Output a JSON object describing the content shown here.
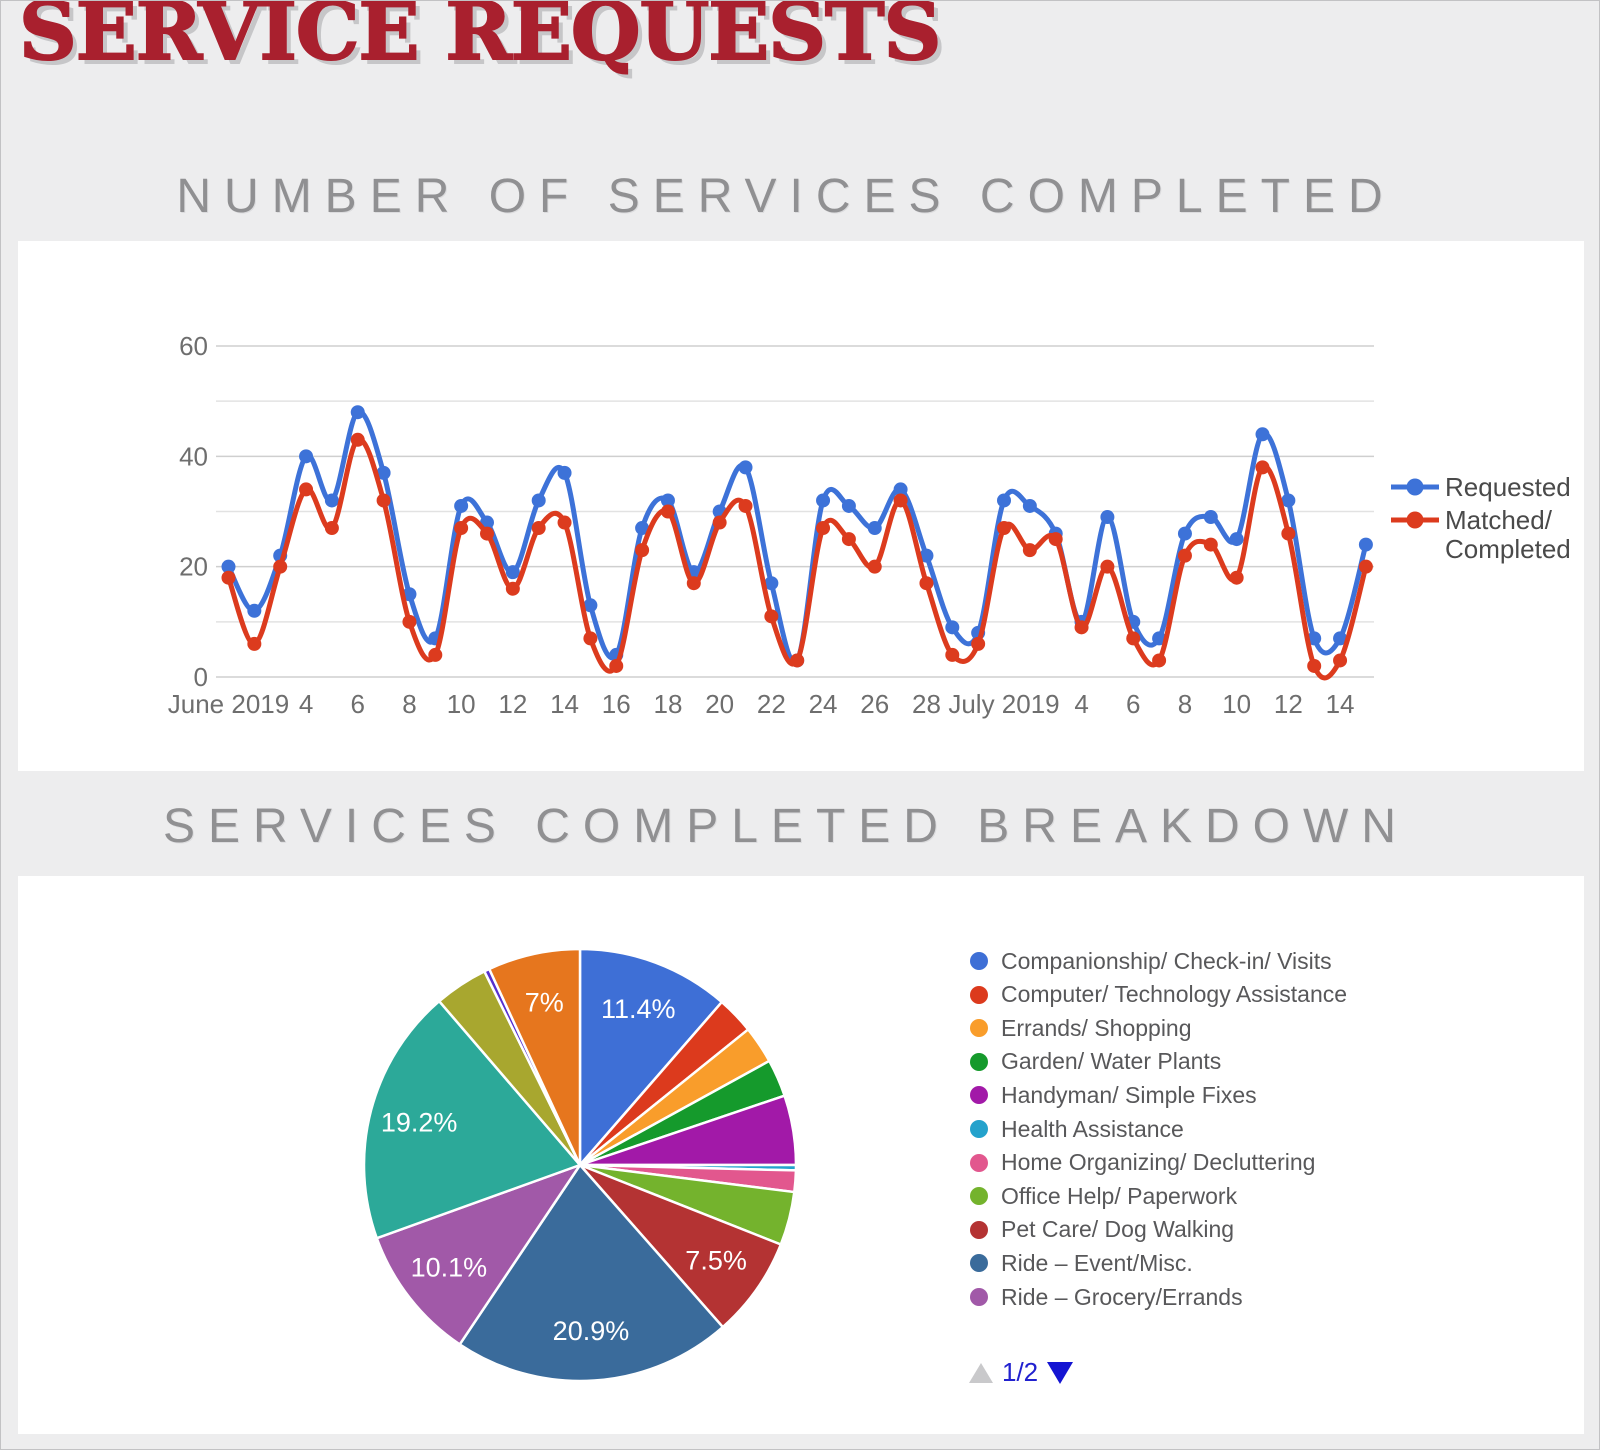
{
  "header": {
    "title": "SERVICE REQUESTS",
    "title_color": "#a9202e"
  },
  "chart_data": [
    {
      "type": "line",
      "title": "NUMBER OF SERVICES COMPLETED",
      "y_ticks": [
        0,
        20,
        40,
        60
      ],
      "ylim": [
        0,
        60
      ],
      "grid": "on",
      "legend_position": "right",
      "x_tick_labels": [
        {
          "label": "June 2019",
          "i": 0
        },
        {
          "label": "4",
          "i": 3
        },
        {
          "label": "6",
          "i": 5
        },
        {
          "label": "8",
          "i": 7
        },
        {
          "label": "10",
          "i": 9
        },
        {
          "label": "12",
          "i": 11
        },
        {
          "label": "14",
          "i": 13
        },
        {
          "label": "16",
          "i": 15
        },
        {
          "label": "18",
          "i": 17
        },
        {
          "label": "20",
          "i": 19
        },
        {
          "label": "22",
          "i": 21
        },
        {
          "label": "24",
          "i": 23
        },
        {
          "label": "26",
          "i": 25
        },
        {
          "label": "28",
          "i": 27
        },
        {
          "label": "July 2019",
          "i": 30
        },
        {
          "label": "4",
          "i": 33
        },
        {
          "label": "6",
          "i": 35
        },
        {
          "label": "8",
          "i": 37
        },
        {
          "label": "10",
          "i": 39
        },
        {
          "label": "12",
          "i": 41
        },
        {
          "label": "14",
          "i": 43
        }
      ],
      "series": [
        {
          "name": "Requested",
          "name_lines": [
            "Requested"
          ],
          "color": "#3d72d8",
          "values": [
            20,
            12,
            22,
            40,
            32,
            48,
            37,
            15,
            7,
            31,
            28,
            19,
            32,
            37,
            13,
            4,
            27,
            32,
            19,
            30,
            38,
            17,
            3,
            32,
            31,
            27,
            34,
            22,
            9,
            8,
            32,
            31,
            26,
            10,
            29,
            10,
            7,
            26,
            29,
            25,
            44,
            32,
            7,
            7,
            24
          ]
        },
        {
          "name": "Matched/ Completed",
          "name_lines": [
            "Matched/",
            "Completed"
          ],
          "color": "#dc3b1e",
          "values": [
            18,
            6,
            20,
            34,
            27,
            43,
            32,
            10,
            4,
            27,
            26,
            16,
            27,
            28,
            7,
            2,
            23,
            30,
            17,
            28,
            31,
            11,
            3,
            27,
            25,
            20,
            32,
            17,
            4,
            6,
            27,
            23,
            25,
            9,
            20,
            7,
            3,
            22,
            24,
            18,
            38,
            26,
            2,
            3,
            20
          ]
        }
      ]
    },
    {
      "type": "pie",
      "title": "SERVICES COMPLETED BREAKDOWN",
      "legend_page": "1/2",
      "slices": [
        {
          "label": "Companionship/ Check-in/ Visits",
          "value": 11.4,
          "display": "11.4%",
          "color": "#3e6fd6"
        },
        {
          "label": "Computer/ Technology Assistance",
          "value": 2.8,
          "display": "",
          "color": "#dc3a1d"
        },
        {
          "label": "Errands/ Shopping",
          "value": 2.8,
          "display": "",
          "color": "#f99d2b"
        },
        {
          "label": "Garden/ Water Plants",
          "value": 2.8,
          "display": "",
          "color": "#159a2c"
        },
        {
          "label": "Handyman/ Simple Fixes",
          "value": 5.2,
          "display": "",
          "color": "#a219a8"
        },
        {
          "label": "Health Assistance",
          "value": 0.4,
          "display": "",
          "color": "#24a2cc"
        },
        {
          "label": "Home Organizing/ Decluttering",
          "value": 1.6,
          "display": "",
          "color": "#e2578e"
        },
        {
          "label": "Office Help/ Paperwork",
          "value": 4.0,
          "display": "",
          "color": "#74b32d"
        },
        {
          "label": "Pet Care/ Dog Walking",
          "value": 7.5,
          "display": "7.5%",
          "color": "#b43333"
        },
        {
          "label": "Ride – Event/Misc.",
          "value": 20.9,
          "display": "20.9%",
          "color": "#3a6b9b"
        },
        {
          "label": "Ride – Grocery/Errands",
          "value": 10.1,
          "display": "10.1%",
          "color": "#a159a8"
        },
        {
          "label": "",
          "value": 19.2,
          "display": "19.2%",
          "color": "#2ca999"
        },
        {
          "label": "",
          "value": 4.0,
          "display": "",
          "color": "#a8a72f"
        },
        {
          "label": "",
          "value": 0.4,
          "display": "",
          "color": "#5630cf"
        },
        {
          "label": "",
          "value": 6.9,
          "display": "7%",
          "color": "#e6761e"
        }
      ],
      "legend_visible_items": 11
    }
  ]
}
